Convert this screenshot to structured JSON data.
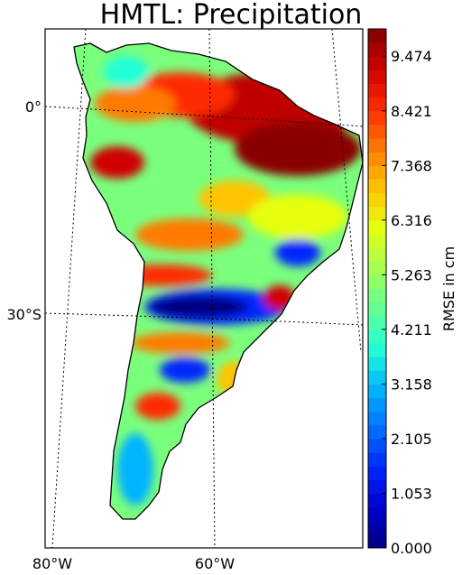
{
  "title": "HMTL: Precipitation",
  "map": {
    "lat_labels": [
      "0°",
      "30°S"
    ],
    "lon_labels": [
      "80°W",
      "60°W"
    ]
  },
  "colorbar": {
    "label": "RMSE in cm",
    "tick_labels": [
      "9.474",
      "8.421",
      "7.368",
      "6.316",
      "5.263",
      "4.211",
      "3.158",
      "2.105",
      "1.053",
      "0.000"
    ],
    "tick_values": [
      9.474,
      8.421,
      7.368,
      6.316,
      5.263,
      4.211,
      3.158,
      2.105,
      1.053,
      0.0
    ],
    "min": 0.0,
    "max": 10.0,
    "colormap": [
      "#00007f",
      "#0000d0",
      "#0026ff",
      "#0070ff",
      "#00b4ff",
      "#21ffd6",
      "#63ff94",
      "#a4ff53",
      "#e6ff11",
      "#ffc400",
      "#ff7a00",
      "#ff2b00",
      "#d00000",
      "#7f0000"
    ]
  }
}
